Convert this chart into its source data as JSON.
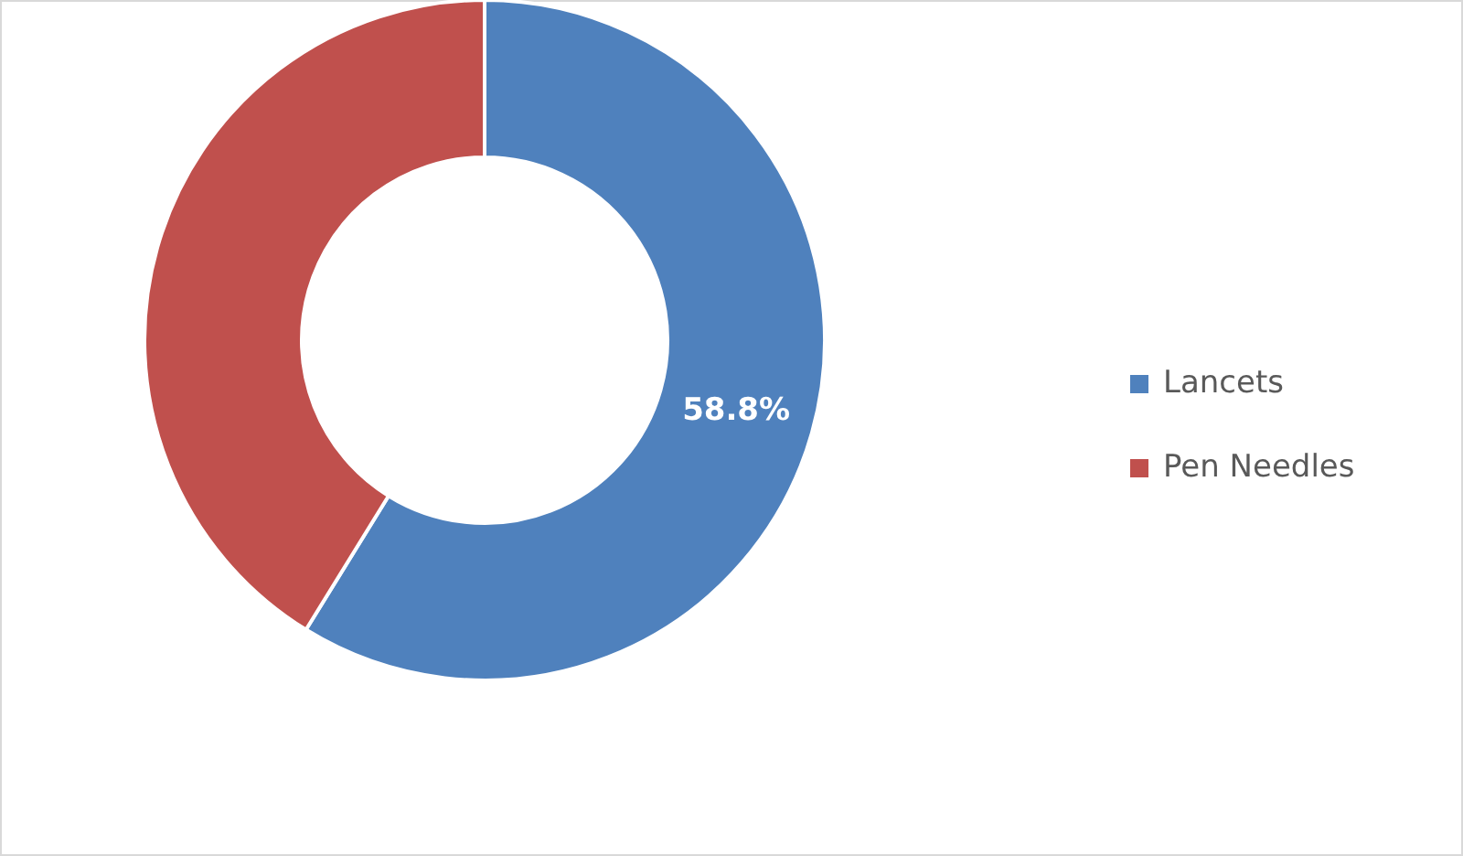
{
  "chart_data": {
    "type": "donut",
    "categories": [
      "Lancets",
      "Pen Needles"
    ],
    "values": [
      58.8,
      41.2
    ],
    "colors": [
      "#4f81bd",
      "#c0504d"
    ],
    "value_labels": [
      "58.8%",
      null
    ],
    "legend": "right"
  }
}
